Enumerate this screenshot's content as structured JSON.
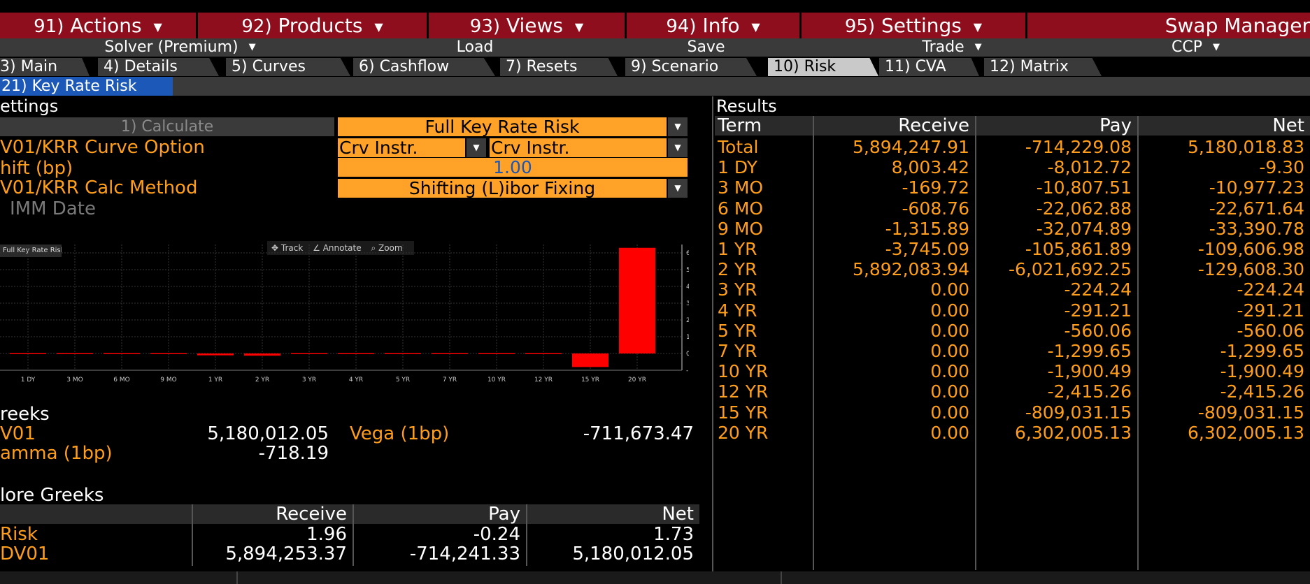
{
  "menu": [
    {
      "num": "91)",
      "label": "Actions",
      "caret": true
    },
    {
      "num": "92)",
      "label": "Products",
      "caret": true
    },
    {
      "num": "93)",
      "label": "Views",
      "caret": true
    },
    {
      "num": "94)",
      "label": "Info",
      "caret": true
    },
    {
      "num": "95)",
      "label": "Settings",
      "caret": true
    }
  ],
  "app_title": "Swap Manager",
  "toolbar": {
    "solver": "Solver (Premium)",
    "load": "Load",
    "save": "Save",
    "trade": "Trade",
    "ccp": "CCP"
  },
  "tabs": [
    "3) Main",
    "4) Details",
    "5) Curves",
    "6) Cashflow",
    "7) Resets",
    "9) Scenario",
    "10) Risk",
    "11) CVA",
    "12) Matrix"
  ],
  "active_tab": "10) Risk",
  "subtab": "21) Key Rate Risk",
  "settings": {
    "title": "ettings",
    "calculate": "1) Calculate",
    "risk_type": "Full Key Rate Risk",
    "curve_option_label": "V01/KRR Curve Option",
    "curve_option_a": "Crv Instr.",
    "curve_option_b": "Crv Instr.",
    "shift_label": "hift (bp)",
    "shift_value": "1.00",
    "calc_method_label": "V01/KRR Calc Method",
    "calc_method_value": "Shifting (L)ibor Fixing",
    "imm_label": "IMM Date"
  },
  "chart_toolbar": {
    "title": "Full Key Rate Risk",
    "track": "Track",
    "annotate": "Annotate",
    "zoom": "Zoom"
  },
  "chart_data": {
    "type": "bar",
    "categories": [
      "1 DY",
      "3 MO",
      "6 MO",
      "9 MO",
      "1 YR",
      "2 YR",
      "3 YR",
      "4 YR",
      "5 YR",
      "7 YR",
      "10 YR",
      "12 YR",
      "15 YR",
      "20 YR"
    ],
    "values": [
      -9.3,
      -10977.23,
      -22671.64,
      -33390.78,
      -109606.98,
      -129608.3,
      -224.24,
      -291.21,
      -560.06,
      -1299.65,
      -1900.49,
      -2415.26,
      -809031.15,
      6302005.13
    ],
    "ylim": [
      -1000000,
      6500000
    ],
    "yticks": [
      6000000,
      5000000,
      4000000,
      3000000,
      2000000,
      1000000,
      0,
      -1000000
    ],
    "ytick_labels": [
      "6M",
      "5M",
      "4M",
      "3M",
      "2M",
      "1M",
      "0",
      "-1M"
    ],
    "bar_color": "#ff0000",
    "grid": true
  },
  "greeks": {
    "title": "reeks",
    "dv01_label": "V01",
    "dv01_value": "5,180,012.05",
    "vega_label": "Vega (1bp)",
    "vega_value": "-711,673.47",
    "gamma_label": "amma (1bp)",
    "gamma_value": "-718.19"
  },
  "more_greeks": {
    "title": "lore Greeks",
    "headers": [
      "Receive",
      "Pay",
      "Net"
    ],
    "rows": [
      {
        "label": "Risk",
        "receive": "1.96",
        "pay": "-0.24",
        "net": "1.73"
      },
      {
        "label": "DV01",
        "receive": "5,894,253.37",
        "pay": "-714,241.33",
        "net": "5,180,012.05"
      }
    ]
  },
  "results": {
    "title": "Results",
    "headers": [
      "Term",
      "Receive",
      "Pay",
      "Net"
    ],
    "rows": [
      [
        "Total",
        "5,894,247.91",
        "-714,229.08",
        "5,180,018.83"
      ],
      [
        "1 DY",
        "8,003.42",
        "-8,012.72",
        "-9.30"
      ],
      [
        "3 MO",
        "-169.72",
        "-10,807.51",
        "-10,977.23"
      ],
      [
        "6 MO",
        "-608.76",
        "-22,062.88",
        "-22,671.64"
      ],
      [
        "9 MO",
        "-1,315.89",
        "-32,074.89",
        "-33,390.78"
      ],
      [
        "1 YR",
        "-3,745.09",
        "-105,861.89",
        "-109,606.98"
      ],
      [
        "2 YR",
        "5,892,083.94",
        "-6,021,692.25",
        "-129,608.30"
      ],
      [
        "3 YR",
        "0.00",
        "-224.24",
        "-224.24"
      ],
      [
        "4 YR",
        "0.00",
        "-291.21",
        "-291.21"
      ],
      [
        "5 YR",
        "0.00",
        "-560.06",
        "-560.06"
      ],
      [
        "7 YR",
        "0.00",
        "-1,299.65",
        "-1,299.65"
      ],
      [
        "10 YR",
        "0.00",
        "-1,900.49",
        "-1,900.49"
      ],
      [
        "12 YR",
        "0.00",
        "-2,415.26",
        "-2,415.26"
      ],
      [
        "15 YR",
        "0.00",
        "-809,031.15",
        "-809,031.15"
      ],
      [
        "20 YR",
        "0.00",
        "6,302,005.13",
        "6,302,005.13"
      ]
    ]
  },
  "colors": {
    "menu_bg": "#8e0e1d",
    "accent": "#ff9e1b",
    "field_bg": "#ffa227",
    "subtab_bg": "#1c58b8"
  }
}
